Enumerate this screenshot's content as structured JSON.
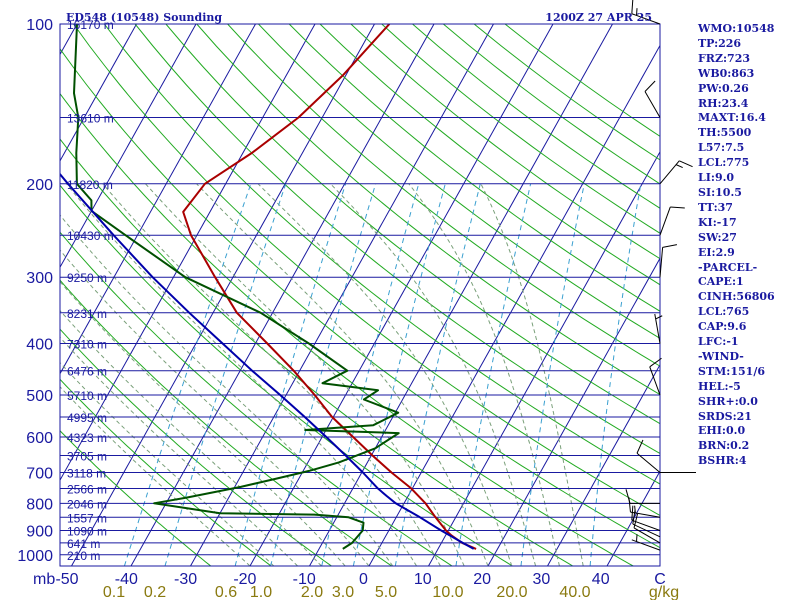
{
  "header": {
    "station": "ED548 (10548) Sounding",
    "time": "1200Z 27 APR 25"
  },
  "indices": [
    "WMO:10548",
    "TP:226",
    "FRZ:723",
    "WB0:863",
    "PW:0.26",
    "RH:23.4",
    "MAXT:16.4",
    "TH:5500",
    "L57:7.5",
    "LCL:775",
    "LI:9.0",
    "SI:10.5",
    "TT:37",
    "KI:-17",
    "SW:27",
    "EI:2.9",
    "-PARCEL-",
    "CAPE:1",
    "CINH:56806",
    "LCL:765",
    "CAP:9.6",
    "LFC:-1",
    "-WIND-",
    "STM:151/6",
    "HEL:-5",
    "SHR+:0.0",
    "SRDS:21",
    "EHI:0.0",
    "BRN:0.2",
    "BSHR:4"
  ],
  "colors": {
    "axis": "#1a1aa0",
    "isotherm": "#1a1aa0",
    "dry_adiabat": "#22aa22",
    "moist_adiabat": "#7aa07a",
    "mixing_ratio": "#3aa0d0",
    "temperature": "#aa0000",
    "dewpoint": "#005000",
    "parcel": "#0000aa",
    "mixing_label": "#8a7a10"
  },
  "chart_data": {
    "type": "skew-t",
    "pressure_levels": [
      {
        "p": 100,
        "label": "100",
        "height": "16170 m"
      },
      {
        "p": 150,
        "label": "",
        "height": "13610 m"
      },
      {
        "p": 200,
        "label": "200",
        "height": "11820 m"
      },
      {
        "p": 250,
        "label": "",
        "height": "10430 m"
      },
      {
        "p": 300,
        "label": "300",
        "height": "9250 m"
      },
      {
        "p": 350,
        "label": "",
        "height": "8231 m"
      },
      {
        "p": 400,
        "label": "400",
        "height": "7310 m"
      },
      {
        "p": 450,
        "label": "",
        "height": "6476 m"
      },
      {
        "p": 500,
        "label": "500",
        "height": "5710 m"
      },
      {
        "p": 550,
        "label": "",
        "height": "4995 m"
      },
      {
        "p": 600,
        "label": "600",
        "height": "4323 m"
      },
      {
        "p": 650,
        "label": "",
        "height": "3705 m"
      },
      {
        "p": 700,
        "label": "700",
        "height": "3118 m"
      },
      {
        "p": 750,
        "label": "",
        "height": "2566 m"
      },
      {
        "p": 800,
        "label": "800",
        "height": "2046 m"
      },
      {
        "p": 850,
        "label": "",
        "height": "1557 m"
      },
      {
        "p": 900,
        "label": "900",
        "height": "1090 m"
      },
      {
        "p": 950,
        "label": "",
        "height": "641 m"
      },
      {
        "p": 1000,
        "label": "1000",
        "height": "210 m"
      }
    ],
    "temperature_ticks": [
      "-50",
      "-40",
      "-30",
      "-20",
      "-10",
      "0",
      "10",
      "20",
      "30",
      "40",
      "C"
    ],
    "pressure_unit": "mb",
    "mixing_ratio_ticks": [
      {
        "w": 0.1,
        "label": "0.1"
      },
      {
        "w": 0.2,
        "label": "0.2"
      },
      {
        "w": 0.6,
        "label": "0.6"
      },
      {
        "w": 1.0,
        "label": "1.0"
      },
      {
        "w": 2.0,
        "label": "2.0"
      },
      {
        "w": 3.0,
        "label": "3.0"
      },
      {
        "w": 5.0,
        "label": "5.0"
      },
      {
        "w": 10.0,
        "label": "10.0"
      },
      {
        "w": 20.0,
        "label": "20.0"
      },
      {
        "w": 40.0,
        "label": "40.0"
      }
    ],
    "mixing_ratio_unit": "g/kg",
    "series": [
      {
        "key": "temperature",
        "points": [
          [
            975,
            16.4
          ],
          [
            950,
            13.5
          ],
          [
            920,
            11.0
          ],
          [
            900,
            9.6
          ],
          [
            850,
            6.6
          ],
          [
            800,
            3.6
          ],
          [
            750,
            -0.2
          ],
          [
            700,
            -5.0
          ],
          [
            650,
            -9.8
          ],
          [
            600,
            -14.8
          ],
          [
            550,
            -20.2
          ],
          [
            500,
            -25.2
          ],
          [
            450,
            -31.0
          ],
          [
            400,
            -38.0
          ],
          [
            350,
            -46.0
          ],
          [
            300,
            -53.0
          ],
          [
            250,
            -61.0
          ],
          [
            226,
            -64.5
          ],
          [
            200,
            -63.5
          ],
          [
            175,
            -58.5
          ],
          [
            150,
            -54.0
          ],
          [
            125,
            -50.5
          ],
          [
            100,
            -47.5
          ]
        ]
      },
      {
        "key": "dewpoint",
        "points": [
          [
            975,
            -6.0
          ],
          [
            950,
            -5.0
          ],
          [
            900,
            -4.4
          ],
          [
            870,
            -5.0
          ],
          [
            850,
            -8.0
          ],
          [
            840,
            -14.0
          ],
          [
            835,
            -30.0
          ],
          [
            800,
            -42.0
          ],
          [
            780,
            -37.0
          ],
          [
            745,
            -29.0
          ],
          [
            720,
            -24.0
          ],
          [
            695,
            -19.0
          ],
          [
            670,
            -14.8
          ],
          [
            630,
            -10.0
          ],
          [
            590,
            -7.5
          ],
          [
            582,
            -23.5
          ],
          [
            570,
            -12.5
          ],
          [
            540,
            -9.5
          ],
          [
            510,
            -16.5
          ],
          [
            490,
            -15.0
          ],
          [
            475,
            -25.0
          ],
          [
            450,
            -22.0
          ],
          [
            400,
            -31.0
          ],
          [
            350,
            -42.0
          ],
          [
            300,
            -58.0
          ],
          [
            250,
            -72.0
          ],
          [
            225,
            -80.0
          ],
          [
            215,
            -81.0
          ],
          [
            200,
            -85.0
          ],
          [
            175,
            -88.0
          ],
          [
            150,
            -91.0
          ],
          [
            135,
            -94.0
          ],
          [
            100,
            -100.0
          ]
        ]
      },
      {
        "key": "parcel",
        "points": [
          [
            975,
            16.0
          ],
          [
            950,
            13.6
          ],
          [
            900,
            8.8
          ],
          [
            850,
            4.0
          ],
          [
            800,
            -1.4
          ],
          [
            775,
            -3.6
          ],
          [
            750,
            -5.8
          ],
          [
            700,
            -9.8
          ],
          [
            650,
            -14.3
          ],
          [
            600,
            -19.3
          ],
          [
            550,
            -24.8
          ],
          [
            500,
            -31.0
          ],
          [
            450,
            -38.0
          ],
          [
            400,
            -45.5
          ],
          [
            350,
            -54.0
          ],
          [
            300,
            -63.5
          ],
          [
            250,
            -74.0
          ],
          [
            200,
            -86.5
          ],
          [
            150,
            -102.0
          ],
          [
            130,
            -110.0
          ]
        ]
      }
    ],
    "wind_barbs": [
      {
        "p": 980,
        "dir": 290,
        "kt": 5
      },
      {
        "p": 950,
        "dir": 300,
        "kt": 10
      },
      {
        "p": 925,
        "dir": 295,
        "kt": 10
      },
      {
        "p": 900,
        "dir": 290,
        "kt": 10
      },
      {
        "p": 850,
        "dir": 280,
        "kt": 15
      },
      {
        "p": 800,
        "dir": 270,
        "kt": 10
      },
      {
        "p": 700,
        "dir": 310,
        "kt": 10
      },
      {
        "p": 500,
        "dir": 340,
        "kt": 10
      },
      {
        "p": 400,
        "dir": 350,
        "kt": 5
      },
      {
        "p": 300,
        "dir": 5,
        "kt": 10
      },
      {
        "p": 250,
        "dir": 20,
        "kt": 10
      },
      {
        "p": 200,
        "dir": 40,
        "kt": 15
      },
      {
        "p": 150,
        "dir": 330,
        "kt": 10
      },
      {
        "p": 100,
        "dir": 290,
        "kt": 15
      }
    ]
  }
}
